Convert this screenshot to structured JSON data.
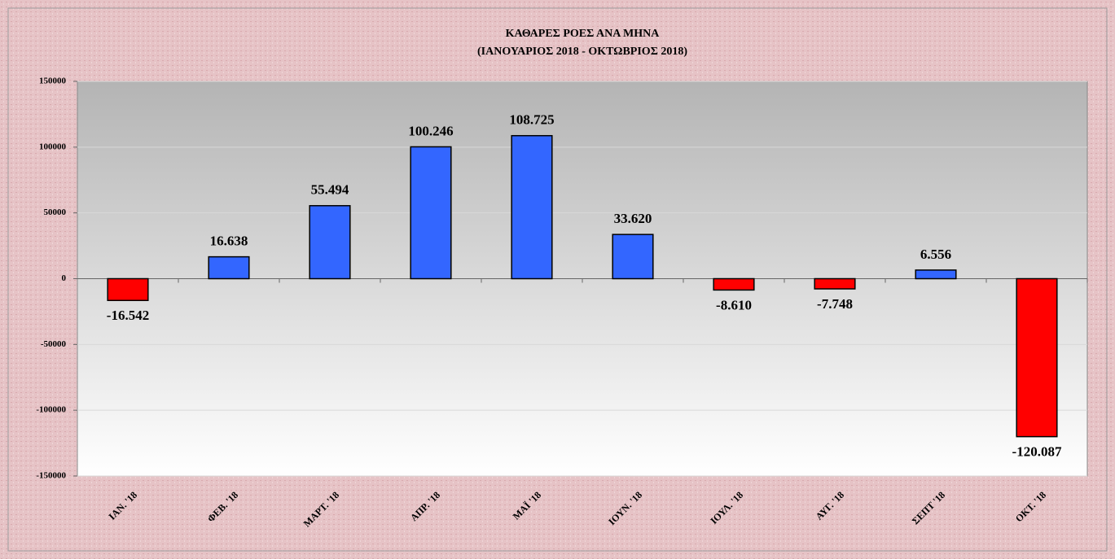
{
  "chart_data": {
    "type": "bar",
    "title": "ΚΑΘΑΡΕΣ ΡΟΕΣ ΑΝΑ ΜΗΝΑ",
    "subtitle": "(ΙΑΝΟΥΑΡΙΟΣ 2018 - ΟΚΤΩΒΡΙΟΣ 2018)",
    "categories": [
      "ΙΑΝ. '18",
      "ΦΕΒ. '18",
      "ΜΑΡΤ. '18",
      "ΑΠΡ. '18",
      "ΜΑΪ '18",
      "ΙΟΥΝ. '18",
      "ΙΟΥΛ. '18",
      "ΑΥΓ. '18",
      "ΣΕΠΤ '18",
      "ΟΚΤ. '18"
    ],
    "values": [
      -16542,
      16638,
      55494,
      100246,
      108725,
      33620,
      -8610,
      -7748,
      6556,
      -120087
    ],
    "value_labels": [
      "-16.542",
      "16.638",
      "55.494",
      "100.246",
      "108.725",
      "33.620",
      "-8.610",
      "-7.748",
      "6.556",
      "-120.087"
    ],
    "colors": [
      "#ff0000",
      "#3366ff",
      "#3366ff",
      "#3366ff",
      "#3366ff",
      "#3366ff",
      "#ff0000",
      "#ff0000",
      "#3366ff",
      "#ff0000"
    ],
    "ylim": [
      -150000,
      150000
    ],
    "yticks": [
      -150000,
      -100000,
      -50000,
      0,
      50000,
      100000,
      150000
    ],
    "grid": true
  }
}
